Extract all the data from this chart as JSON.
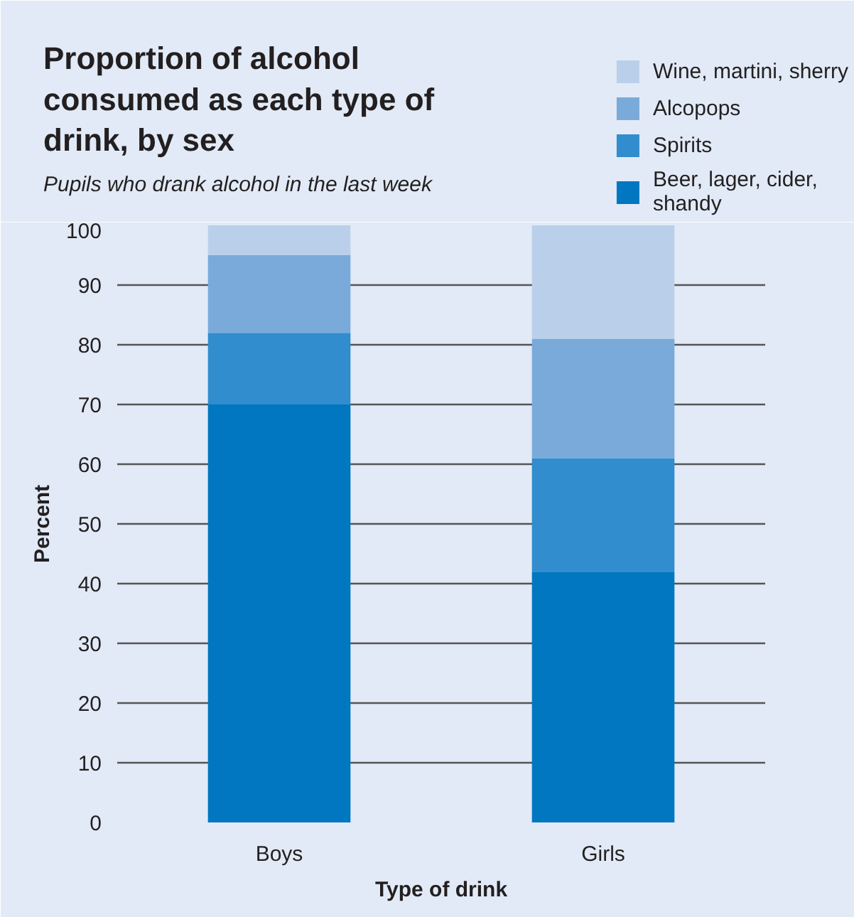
{
  "chart_data": {
    "type": "bar",
    "title": "Proportion of alcohol\nconsumed as each type of\ndrink, by sex",
    "subtitle": "Pupils who drank alcohol in the last week",
    "xlabel": "Type of drink",
    "ylabel": "Percent",
    "categories": [
      "Boys",
      "Girls"
    ],
    "stacked": true,
    "series": [
      {
        "name": "Beer, lager, cider,\nshandy",
        "color": "#0077c0",
        "values": [
          70,
          42
        ]
      },
      {
        "name": "Spirits",
        "color": "#318dcd",
        "values": [
          12,
          19
        ]
      },
      {
        "name": "Alcopops",
        "color": "#7aaada",
        "values": [
          13,
          20
        ]
      },
      {
        "name": "Wine, martini, sherry",
        "color": "#bad0ea",
        "values": [
          5,
          19
        ]
      }
    ],
    "ylim": [
      0,
      100
    ],
    "yticks": [
      0,
      10,
      20,
      30,
      40,
      50,
      60,
      70,
      80,
      90,
      100
    ],
    "grid": "y",
    "legend": "top right"
  }
}
